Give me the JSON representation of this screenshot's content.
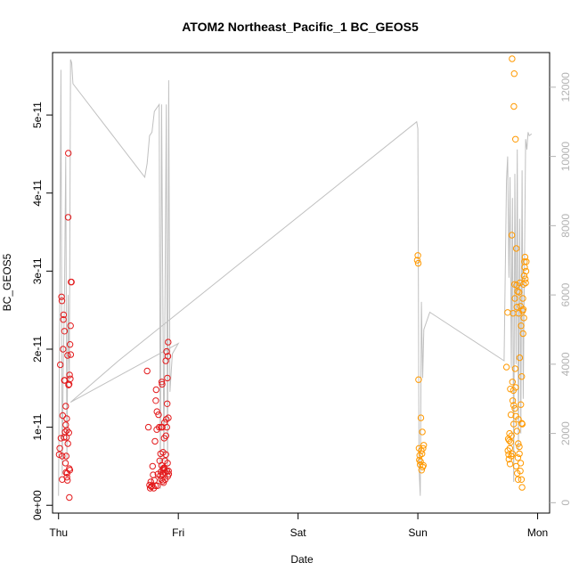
{
  "chart_data": {
    "type": "scatter",
    "title": "ATOM2 Northeast_Pacific_1 BC_GEOS5",
    "xlabel": "Date",
    "ylabel": "BC_GEOS5",
    "x_ticks": [
      "Thu",
      "Fri",
      "Sat",
      "Sun",
      "Mon"
    ],
    "xlim": [
      -0.05,
      4.1
    ],
    "ylim": [
      -1e-12,
      5.8e-11
    ],
    "y_ticks": [
      "0e+00",
      "1e-11",
      "2e-11",
      "3e-11",
      "4e-11",
      "5e-11"
    ],
    "y_tick_values": [
      0,
      1e-11,
      2e-11,
      3e-11,
      4e-11,
      5e-11
    ],
    "y2lim": [
      -300,
      13000
    ],
    "y2_ticks": [
      "0",
      "2000",
      "4000",
      "6000",
      "8000",
      "10000",
      "12000"
    ],
    "y2_tick_values": [
      0,
      2000,
      4000,
      6000,
      8000,
      10000,
      12000
    ],
    "grid": false,
    "legend": "none",
    "colors": {
      "red": "#e31a1c",
      "orange": "#ff9900",
      "line": "#c0c0c0"
    },
    "series": [
      {
        "color": "#e31a1c",
        "points": [
          [
            0.005,
            6.5e-12
          ],
          [
            0.01,
            7.3e-12
          ],
          [
            0.015,
            1.8e-11
          ],
          [
            0.02,
            8.6e-12
          ],
          [
            0.025,
            2.67e-11
          ],
          [
            0.028,
            2.62e-11
          ],
          [
            0.03,
            6.3e-12
          ],
          [
            0.035,
            1.15e-11
          ],
          [
            0.038,
            2e-11
          ],
          [
            0.04,
            2.38e-11
          ],
          [
            0.042,
            2.44e-11
          ],
          [
            0.045,
            8.7e-12
          ],
          [
            0.048,
            1.6e-11
          ],
          [
            0.05,
            2.23e-11
          ],
          [
            0.052,
            1.6e-11
          ],
          [
            0.055,
            9.4e-12
          ],
          [
            0.058,
            5.4e-12
          ],
          [
            0.06,
            1.27e-11
          ],
          [
            0.062,
            4.2e-12
          ],
          [
            0.064,
            6.3e-12
          ],
          [
            0.066,
            8.7e-12
          ],
          [
            0.068,
            1.11e-11
          ],
          [
            0.07,
            3.6e-12
          ],
          [
            0.072,
            4.1e-12
          ],
          [
            0.074,
            3.2e-12
          ],
          [
            0.076,
            1.92e-11
          ],
          [
            0.078,
            7.9e-12
          ],
          [
            0.08,
            3.69e-11
          ],
          [
            0.082,
            4.51e-11
          ],
          [
            0.084,
            1.54e-11
          ],
          [
            0.086,
            9.3e-12
          ],
          [
            0.088,
            1.55e-11
          ],
          [
            0.09,
            1e-12
          ],
          [
            0.092,
            1.67e-11
          ],
          [
            0.094,
            4.5e-12
          ],
          [
            0.096,
            2.06e-11
          ],
          [
            0.098,
            1.62e-11
          ],
          [
            0.1,
            2.3e-11
          ],
          [
            0.102,
            1.93e-11
          ],
          [
            0.104,
            2.86e-11
          ],
          [
            0.108,
            2.86e-11
          ],
          [
            0.03,
            3.3e-12
          ],
          [
            0.06,
            1.03e-11
          ],
          [
            0.07,
            9.6e-12
          ],
          [
            0.09,
            4.7e-12
          ],
          [
            0.74,
            1.72e-11
          ],
          [
            0.75,
            1e-11
          ],
          [
            0.76,
            2.6e-12
          ],
          [
            0.765,
            2.2e-12
          ],
          [
            0.77,
            3e-12
          ],
          [
            0.775,
            2.4e-12
          ],
          [
            0.78,
            2.5e-12
          ],
          [
            0.785,
            5e-12
          ],
          [
            0.79,
            3.9e-12
          ],
          [
            0.795,
            2.2e-12
          ],
          [
            0.8,
            3.2e-12
          ],
          [
            0.805,
            8.2e-12
          ],
          [
            0.81,
            2.5e-12
          ],
          [
            0.812,
            1.34e-11
          ],
          [
            0.815,
            1.48e-11
          ],
          [
            0.82,
            9.7e-12
          ],
          [
            0.822,
            1.2e-11
          ],
          [
            0.825,
            2.5e-12
          ],
          [
            0.83,
            4e-12
          ],
          [
            0.835,
            1.16e-11
          ],
          [
            0.84,
            1e-11
          ],
          [
            0.845,
            5.7e-12
          ],
          [
            0.85,
            3.8e-12
          ],
          [
            0.852,
            6.6e-12
          ],
          [
            0.855,
            4.3e-12
          ],
          [
            0.86,
            5.1e-12
          ],
          [
            0.862,
            1.58e-11
          ],
          [
            0.865,
            1.55e-11
          ],
          [
            0.868,
            4e-12
          ],
          [
            0.87,
            3.1e-12
          ],
          [
            0.872,
            6.8e-12
          ],
          [
            0.875,
            4.5e-12
          ],
          [
            0.877,
            2.9e-12
          ],
          [
            0.88,
            4.8e-12
          ],
          [
            0.882,
            8.6e-12
          ],
          [
            0.885,
            1.06e-11
          ],
          [
            0.887,
            5.7e-12
          ],
          [
            0.89,
            3.3e-12
          ],
          [
            0.892,
            4.2e-12
          ],
          [
            0.895,
            1.85e-11
          ],
          [
            0.897,
            8.9e-12
          ],
          [
            0.9,
            1.1e-11
          ],
          [
            0.902,
            1.97e-11
          ],
          [
            0.905,
            4.4e-12
          ],
          [
            0.907,
            1.3e-11
          ],
          [
            0.91,
            5.4e-12
          ],
          [
            0.912,
            3.7e-12
          ],
          [
            0.915,
            2.09e-11
          ],
          [
            0.917,
            1.12e-11
          ],
          [
            0.92,
            4e-12
          ],
          [
            0.856,
            1e-11
          ],
          [
            0.858,
            3.3e-12
          ],
          [
            0.866,
            1e-11
          ],
          [
            0.874,
            4.7e-12
          ],
          [
            0.884,
            4.7e-12
          ],
          [
            0.896,
            6.5e-12
          ],
          [
            0.904,
            1e-11
          ],
          [
            0.909,
            1.63e-11
          ],
          [
            0.913,
            1.91e-11
          ],
          [
            0.918,
            4.4e-12
          ]
        ]
      },
      {
        "color": "#ff9900",
        "points": [
          [
            2.995,
            3.14e-11
          ],
          [
            3.0,
            3.2e-11
          ],
          [
            3.003,
            3.1e-11
          ],
          [
            3.006,
            1.61e-11
          ],
          [
            3.01,
            7.3e-12
          ],
          [
            3.013,
            5.8e-12
          ],
          [
            3.016,
            6.4e-12
          ],
          [
            3.019,
            5.2e-12
          ],
          [
            3.022,
            5.6e-12
          ],
          [
            3.025,
            1.12e-11
          ],
          [
            3.028,
            7e-12
          ],
          [
            3.031,
            4.5e-12
          ],
          [
            3.034,
            6.6e-12
          ],
          [
            3.037,
            9.4e-12
          ],
          [
            3.04,
            4.9e-12
          ],
          [
            3.043,
            7.3e-12
          ],
          [
            3.046,
            5.1e-12
          ],
          [
            3.049,
            7.7e-12
          ],
          [
            3.74,
            1.77e-11
          ],
          [
            3.75,
            2.47e-11
          ],
          [
            3.752,
            7e-12
          ],
          [
            3.755,
            8.5e-12
          ],
          [
            3.758,
            6.5e-12
          ],
          [
            3.76,
            5.9e-12
          ],
          [
            3.763,
            8.3e-12
          ],
          [
            3.765,
            9.2e-12
          ],
          [
            3.768,
            7.3e-12
          ],
          [
            3.77,
            5.3e-12
          ],
          [
            3.772,
            1.49e-11
          ],
          [
            3.775,
            8.1e-12
          ],
          [
            3.777,
            1.16e-11
          ],
          [
            3.78,
            6.3e-12
          ],
          [
            3.782,
            8.9e-12
          ],
          [
            3.785,
            3.46e-11
          ],
          [
            3.787,
            5.72e-11
          ],
          [
            3.79,
            6.6e-12
          ],
          [
            3.792,
            1.34e-11
          ],
          [
            3.795,
            2.46e-11
          ],
          [
            3.797,
            1.47e-11
          ],
          [
            3.8,
            1.04e-11
          ],
          [
            3.802,
            5.11e-11
          ],
          [
            3.805,
            5.53e-11
          ],
          [
            3.807,
            2.83e-11
          ],
          [
            3.81,
            2.65e-11
          ],
          [
            3.812,
            1.75e-11
          ],
          [
            3.815,
            4.69e-11
          ],
          [
            3.817,
            1.51e-11
          ],
          [
            3.82,
            5e-12
          ],
          [
            3.822,
            3.29e-11
          ],
          [
            3.825,
            2.82e-11
          ],
          [
            3.827,
            2.54e-11
          ],
          [
            3.83,
            4.1e-12
          ],
          [
            3.832,
            2.74e-11
          ],
          [
            3.835,
            6.1e-12
          ],
          [
            3.837,
            3.3e-12
          ],
          [
            3.84,
            1.1e-11
          ],
          [
            3.842,
            2.46e-11
          ],
          [
            3.845,
            2.73e-11
          ],
          [
            3.847,
            7.5e-12
          ],
          [
            3.85,
            1.89e-11
          ],
          [
            3.852,
            2.85e-11
          ],
          [
            3.855,
            4.4e-12
          ],
          [
            3.857,
            2.55e-11
          ],
          [
            3.86,
            1.29e-11
          ],
          [
            3.862,
            2.3e-11
          ],
          [
            3.865,
            3.3e-12
          ],
          [
            3.867,
            1.65e-11
          ],
          [
            3.87,
            2.3e-12
          ],
          [
            3.872,
            1.04e-11
          ],
          [
            3.875,
            2.49e-11
          ],
          [
            3.877,
            2.65e-11
          ],
          [
            3.88,
            2.51e-11
          ],
          [
            3.882,
            2.83e-11
          ],
          [
            3.885,
            2.4e-11
          ],
          [
            3.887,
            2.94e-11
          ],
          [
            3.89,
            3.12e-11
          ],
          [
            3.892,
            3.05e-11
          ],
          [
            3.895,
            3.18e-11
          ],
          [
            3.897,
            2.9e-11
          ],
          [
            3.9,
            2.85e-11
          ],
          [
            3.903,
            3e-11
          ],
          [
            3.905,
            3.12e-11
          ],
          [
            3.79,
            1.58e-11
          ],
          [
            3.8,
            1.28e-11
          ],
          [
            3.81,
            1.24e-11
          ],
          [
            3.818,
            1.14e-11
          ],
          [
            3.828,
            9.5e-12
          ],
          [
            3.838,
            7.9e-12
          ],
          [
            3.848,
            6.6e-12
          ],
          [
            3.858,
            5.4e-12
          ],
          [
            3.868,
            1.05e-11
          ],
          [
            3.878,
            2.2e-11
          ]
        ]
      }
    ],
    "line_series": {
      "color": "#c0c0c0",
      "axis": "right",
      "points": [
        [
          0.0,
          200
        ],
        [
          0.01,
          6000
        ],
        [
          0.02,
          12500
        ],
        [
          0.03,
          800
        ],
        [
          0.04,
          4000
        ],
        [
          0.05,
          6000
        ],
        [
          0.06,
          10000
        ],
        [
          0.07,
          1200
        ],
        [
          0.08,
          6000
        ],
        [
          0.09,
          3500
        ],
        [
          0.1,
          12800
        ],
        [
          0.11,
          12700
        ],
        [
          0.12,
          12100
        ],
        [
          0.72,
          9400
        ],
        [
          0.74,
          9800
        ],
        [
          0.76,
          10600
        ],
        [
          0.78,
          10700
        ],
        [
          0.8,
          11300
        ],
        [
          0.82,
          11400
        ],
        [
          0.84,
          11500
        ],
        [
          0.85,
          400
        ],
        [
          0.86,
          11500
        ],
        [
          0.88,
          1200
        ],
        [
          0.9,
          11500
        ],
        [
          0.91,
          600
        ],
        [
          0.92,
          12200
        ],
        [
          0.93,
          3200
        ],
        [
          0.95,
          4300
        ],
        [
          1.0,
          4600
        ],
        [
          0.1,
          2900
        ],
        [
          0.5,
          4100
        ],
        [
          2.99,
          11000
        ],
        [
          3.0,
          10800
        ],
        [
          3.01,
          1000
        ],
        [
          3.02,
          200
        ],
        [
          3.03,
          5800
        ],
        [
          3.04,
          3600
        ],
        [
          3.05,
          5000
        ],
        [
          3.1,
          5500
        ],
        [
          3.72,
          4100
        ],
        [
          3.74,
          9300
        ],
        [
          3.75,
          10000
        ],
        [
          3.76,
          6500
        ],
        [
          3.77,
          9400
        ],
        [
          3.78,
          3900
        ],
        [
          3.79,
          8800
        ],
        [
          3.8,
          600
        ],
        [
          3.81,
          9500
        ],
        [
          3.82,
          4000
        ],
        [
          3.83,
          10200
        ],
        [
          3.84,
          1500
        ],
        [
          3.85,
          8200
        ],
        [
          3.86,
          2000
        ],
        [
          3.87,
          9600
        ],
        [
          3.88,
          3000
        ],
        [
          3.9,
          10500
        ],
        [
          3.91,
          10200
        ],
        [
          3.92,
          10700
        ],
        [
          3.93,
          10600
        ],
        [
          3.95,
          10650
        ]
      ]
    }
  }
}
